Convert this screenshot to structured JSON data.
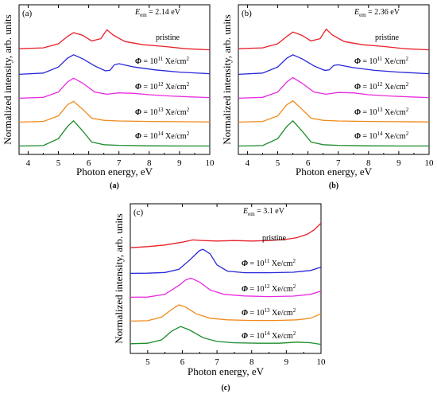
{
  "figure": {
    "subfigure_labels": [
      "(a)",
      "(b)",
      "(c)"
    ],
    "ylabel": "Normalized intensity, arb. units",
    "xlabel": "Photon energy, eV"
  },
  "chart_data": [
    {
      "type": "line",
      "panel_label": "(a)",
      "annotation": "E_em = 2.14 eV",
      "xlabel": "Photon energy, eV",
      "ylabel": "Normalized intensity, arb. units",
      "xlim": [
        3.7,
        10
      ],
      "xticks": [
        4,
        5,
        6,
        7,
        8,
        9,
        10
      ],
      "series": [
        {
          "name": "pristine",
          "color": "#e8202a",
          "offset": 4,
          "x": [
            3.7,
            4.5,
            5.0,
            5.3,
            5.5,
            5.8,
            6.1,
            6.4,
            6.6,
            6.8,
            7.2,
            7.8,
            8.5,
            9.2,
            10.0
          ],
          "y": [
            0.1,
            0.14,
            0.32,
            0.65,
            0.82,
            0.7,
            0.45,
            0.55,
            0.95,
            0.72,
            0.42,
            0.28,
            0.2,
            0.1,
            0.05
          ]
        },
        {
          "name": "Φ = 10^11 Xe/cm^2",
          "color": "#2727d8",
          "offset": 3,
          "x": [
            3.7,
            4.5,
            5.0,
            5.3,
            5.5,
            5.8,
            6.2,
            6.55,
            6.7,
            6.85,
            7.0,
            7.5,
            8.2,
            9.0,
            10.0
          ],
          "y": [
            0.02,
            0.08,
            0.35,
            0.75,
            0.9,
            0.72,
            0.4,
            0.18,
            0.2,
            0.45,
            0.5,
            0.35,
            0.22,
            0.12,
            0.05
          ]
        },
        {
          "name": "Φ = 10^12 Xe/cm^2",
          "color": "#e82ae0",
          "offset": 2,
          "x": [
            3.7,
            4.5,
            5.0,
            5.3,
            5.5,
            5.8,
            6.2,
            6.6,
            7.0,
            7.5,
            8.0,
            8.7,
            9.4,
            10.0
          ],
          "y": [
            0.02,
            0.06,
            0.3,
            0.75,
            0.92,
            0.7,
            0.3,
            0.2,
            0.26,
            0.24,
            0.18,
            0.12,
            0.08,
            0.05
          ]
        },
        {
          "name": "Φ = 10^13 Xe/cm^2",
          "color": "#f08a1c",
          "offset": 1,
          "x": [
            3.7,
            4.5,
            5.0,
            5.3,
            5.5,
            5.8,
            6.1,
            6.5,
            7.0,
            8.0,
            9.0,
            10.0
          ],
          "y": [
            0.02,
            0.05,
            0.3,
            0.8,
            0.95,
            0.6,
            0.2,
            0.1,
            0.07,
            0.05,
            0.04,
            0.03
          ]
        },
        {
          "name": "Φ = 10^14 Xe/cm^2",
          "color": "#1c8c2c",
          "offset": 0,
          "x": [
            3.7,
            4.5,
            5.0,
            5.3,
            5.5,
            5.8,
            6.1,
            6.5,
            7.0,
            8.0,
            9.0,
            10.0
          ],
          "y": [
            0.02,
            0.04,
            0.35,
            0.9,
            1.15,
            0.7,
            0.2,
            0.08,
            0.05,
            0.03,
            0.02,
            0.02
          ]
        }
      ]
    },
    {
      "type": "line",
      "panel_label": "(b)",
      "annotation": "E_em = 2.36 eV",
      "xlabel": "Photon energy, eV",
      "ylabel": "Normalized intensity, arb. units",
      "xlim": [
        3.7,
        10
      ],
      "xticks": [
        4,
        5,
        6,
        7,
        8,
        9,
        10
      ],
      "series": [
        {
          "name": "pristine",
          "color": "#e8202a",
          "offset": 4,
          "x": [
            3.7,
            4.5,
            5.0,
            5.3,
            5.5,
            5.8,
            6.1,
            6.4,
            6.6,
            6.8,
            7.2,
            7.8,
            8.5,
            9.2,
            10.0
          ],
          "y": [
            0.1,
            0.14,
            0.32,
            0.65,
            0.85,
            0.7,
            0.45,
            0.55,
            0.98,
            0.72,
            0.42,
            0.28,
            0.2,
            0.1,
            0.05
          ]
        },
        {
          "name": "Φ = 10^11 Xe/cm^2",
          "color": "#2727d8",
          "offset": 3,
          "x": [
            3.7,
            4.5,
            5.0,
            5.3,
            5.5,
            5.8,
            6.2,
            6.55,
            6.7,
            6.85,
            7.0,
            7.5,
            8.2,
            9.0,
            10.0
          ],
          "y": [
            0.02,
            0.08,
            0.35,
            0.75,
            0.9,
            0.72,
            0.4,
            0.2,
            0.22,
            0.42,
            0.45,
            0.32,
            0.2,
            0.12,
            0.05
          ]
        },
        {
          "name": "Φ = 10^12 Xe/cm^2",
          "color": "#e82ae0",
          "offset": 2,
          "x": [
            3.7,
            4.5,
            5.0,
            5.3,
            5.5,
            5.8,
            6.2,
            6.6,
            7.0,
            7.5,
            8.0,
            8.7,
            9.4,
            10.0
          ],
          "y": [
            0.02,
            0.06,
            0.3,
            0.75,
            0.95,
            0.7,
            0.3,
            0.2,
            0.28,
            0.26,
            0.18,
            0.12,
            0.08,
            0.05
          ]
        },
        {
          "name": "Φ = 10^13 Xe/cm^2",
          "color": "#f08a1c",
          "offset": 1,
          "x": [
            3.7,
            4.5,
            5.0,
            5.3,
            5.5,
            5.8,
            6.1,
            6.5,
            7.0,
            8.0,
            9.0,
            10.0
          ],
          "y": [
            0.02,
            0.05,
            0.3,
            0.8,
            0.98,
            0.6,
            0.2,
            0.1,
            0.07,
            0.05,
            0.04,
            0.03
          ]
        },
        {
          "name": "Φ = 10^14 Xe/cm^2",
          "color": "#1c8c2c",
          "offset": 0,
          "x": [
            3.7,
            4.5,
            5.0,
            5.3,
            5.5,
            5.8,
            6.1,
            6.5,
            7.0,
            8.0,
            9.0,
            10.0
          ],
          "y": [
            0.02,
            0.04,
            0.35,
            0.9,
            1.15,
            0.7,
            0.2,
            0.08,
            0.05,
            0.03,
            0.02,
            0.02
          ]
        }
      ]
    },
    {
      "type": "line",
      "panel_label": "(c)",
      "annotation": "E_em = 3.1 eV",
      "xlabel": "Photon energy, eV",
      "ylabel": "Normalized intensity, arb. units",
      "xlim": [
        4.5,
        10
      ],
      "xticks": [
        5,
        6,
        7,
        8,
        9,
        10
      ],
      "series": [
        {
          "name": "pristine",
          "color": "#e8202a",
          "offset": 4,
          "x": [
            4.5,
            5.0,
            5.5,
            6.0,
            6.3,
            6.6,
            7.0,
            7.5,
            8.0,
            8.5,
            9.0,
            9.3,
            9.6,
            9.8,
            10.0
          ],
          "y": [
            0.1,
            0.15,
            0.22,
            0.35,
            0.45,
            0.42,
            0.4,
            0.42,
            0.4,
            0.42,
            0.48,
            0.55,
            0.7,
            0.9,
            1.2
          ]
        },
        {
          "name": "Φ = 10^11 Xe/cm^2",
          "color": "#2727d8",
          "offset": 3,
          "x": [
            4.5,
            5.0,
            5.5,
            5.9,
            6.2,
            6.5,
            6.6,
            6.8,
            7.0,
            7.3,
            7.8,
            8.5,
            9.2,
            9.7,
            10.0
          ],
          "y": [
            0.02,
            0.03,
            0.06,
            0.2,
            0.6,
            1.05,
            1.1,
            0.9,
            0.4,
            0.12,
            0.05,
            0.05,
            0.07,
            0.15,
            0.3
          ]
        },
        {
          "name": "Φ = 10^12 Xe/cm^2",
          "color": "#e82ae0",
          "offset": 2,
          "x": [
            4.5,
            5.0,
            5.5,
            5.9,
            6.1,
            6.25,
            6.5,
            6.8,
            7.2,
            7.8,
            8.5,
            9.2,
            9.7,
            10.0
          ],
          "y": [
            0.02,
            0.03,
            0.15,
            0.55,
            0.8,
            0.88,
            0.7,
            0.35,
            0.15,
            0.08,
            0.05,
            0.07,
            0.15,
            0.3
          ]
        },
        {
          "name": "Φ = 10^13 Xe/cm^2",
          "color": "#f08a1c",
          "offset": 1,
          "x": [
            4.5,
            5.0,
            5.4,
            5.7,
            5.9,
            6.1,
            6.4,
            6.8,
            7.3,
            8.0,
            8.7,
            9.3,
            9.7,
            10.0
          ],
          "y": [
            0.02,
            0.04,
            0.2,
            0.55,
            0.75,
            0.65,
            0.35,
            0.15,
            0.08,
            0.05,
            0.05,
            0.08,
            0.15,
            0.35
          ]
        },
        {
          "name": "Φ = 10^14 Xe/cm^2",
          "color": "#1c8c2c",
          "offset": 0,
          "x": [
            4.5,
            5.0,
            5.4,
            5.7,
            5.95,
            6.2,
            6.6,
            7.0,
            7.5,
            8.2,
            8.8,
            9.3,
            9.7,
            10.0
          ],
          "y": [
            0.08,
            0.1,
            0.25,
            0.65,
            0.85,
            0.7,
            0.35,
            0.18,
            0.12,
            0.1,
            0.1,
            0.15,
            0.12,
            0.05
          ]
        }
      ]
    }
  ]
}
